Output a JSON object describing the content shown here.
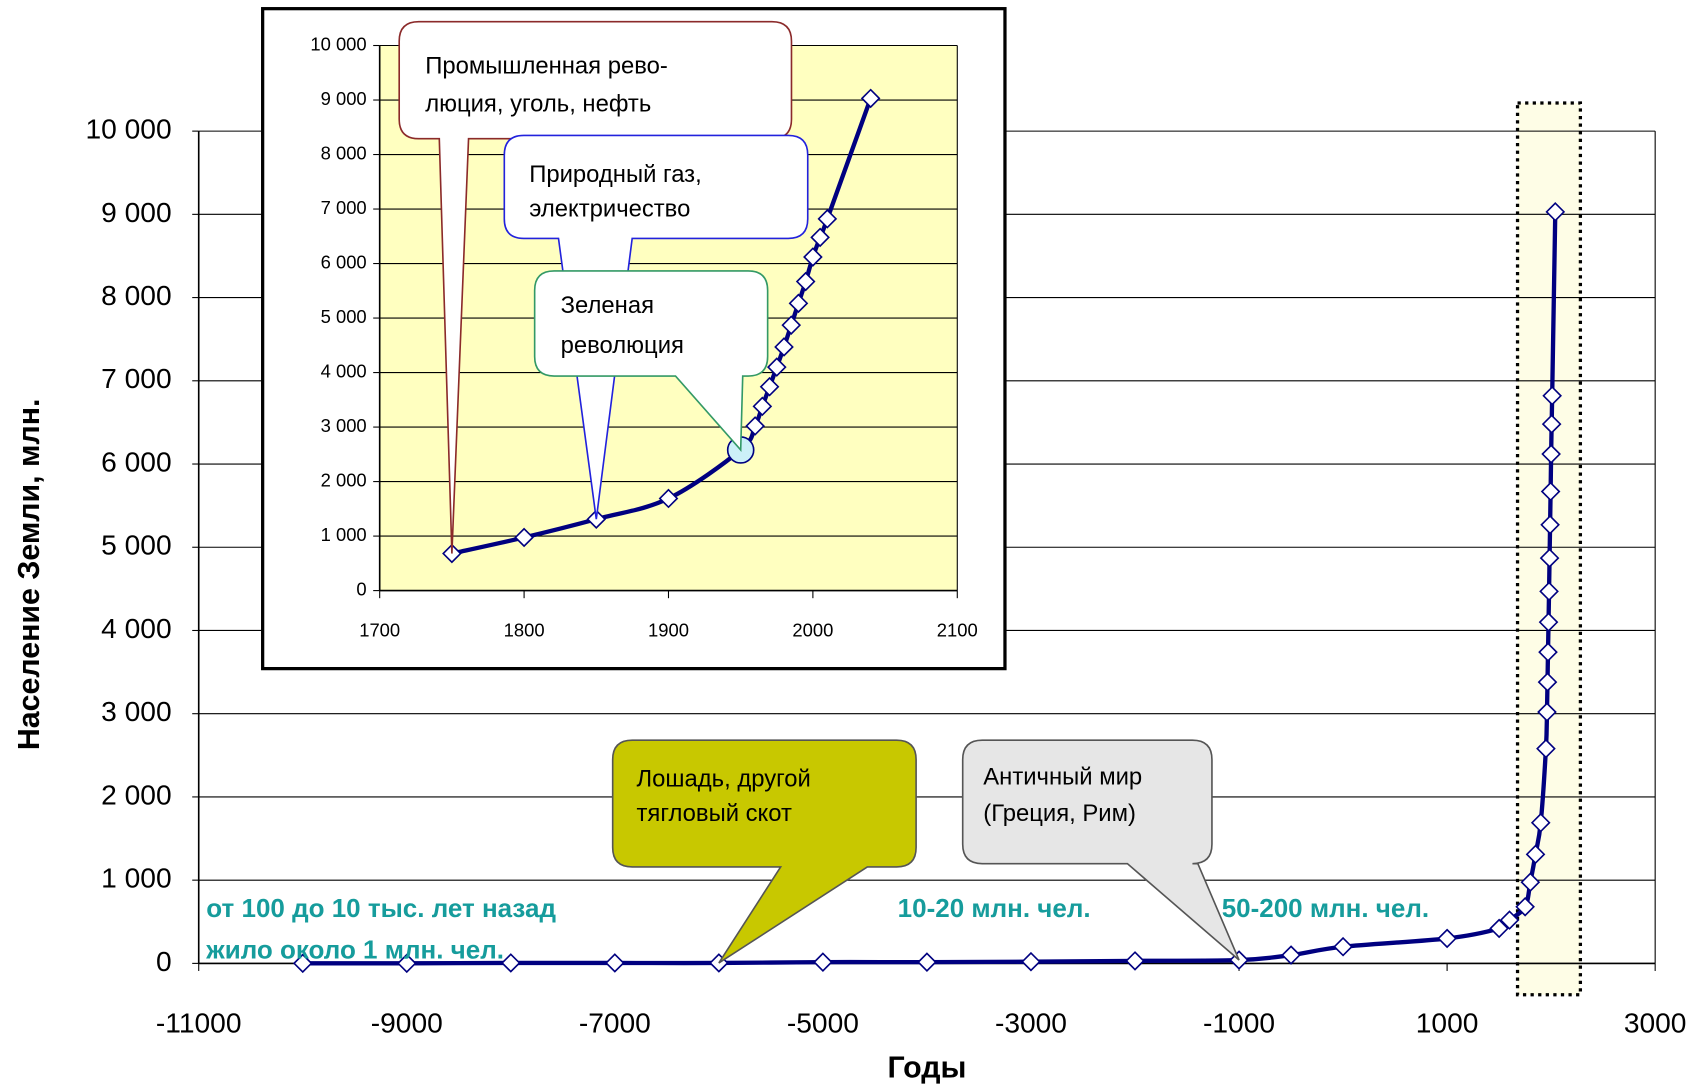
{
  "chart_data": [
    {
      "type": "line",
      "xlabel": "Годы",
      "ylabel": "Население Земли, млн.",
      "xlim": [
        -11000,
        3000
      ],
      "xticks": [
        -11000,
        -9000,
        -7000,
        -5000,
        -3000,
        -1000,
        1000,
        3000
      ],
      "ylim": [
        0,
        10000
      ],
      "yticks": [
        0,
        {
          "value": 1000,
          "label": "1 000"
        },
        {
          "value": 2000,
          "label": "2 000"
        },
        {
          "value": 3000,
          "label": "3 000"
        },
        {
          "value": 4000,
          "label": "4 000"
        },
        {
          "value": 5000,
          "label": "5 000"
        },
        {
          "value": 6000,
          "label": "6 000"
        },
        {
          "value": 7000,
          "label": "7 000"
        },
        {
          "value": 8000,
          "label": "8 000"
        },
        {
          "value": 9000,
          "label": "9 000"
        },
        {
          "value": 10000,
          "label": "10 000"
        }
      ],
      "grid": true,
      "x": [
        -10000,
        -9000,
        -8000,
        -7000,
        -6000,
        -5000,
        -4000,
        -3000,
        -2000,
        -1000,
        -500,
        0,
        1000,
        1500,
        1600,
        1750,
        1800,
        1850,
        1900,
        1950,
        1960,
        1965,
        1970,
        1975,
        1980,
        1985,
        1990,
        1995,
        2000,
        2005,
        2010,
        2040
      ],
      "series": [
        {
          "color": "#000080",
          "values": [
            1,
            1,
            5,
            5,
            5,
            15,
            15,
            20,
            30,
            40,
            100,
            200,
            300,
            420,
            520,
            680,
            975,
            1310,
            1690,
            2580,
            3020,
            3380,
            3740,
            4100,
            4470,
            4870,
            5270,
            5670,
            6120,
            6480,
            6820,
            9030
          ]
        }
      ],
      "notes": [
        {
          "lines": [
            "от 100 до 10 тыс. лет назад",
            "жило около 1 млн. чел."
          ],
          "color": "#169c9c"
        },
        {
          "lines": [
            "10-20 млн. чел."
          ],
          "color": "#169c9c"
        },
        {
          "lines": [
            "50-200 млн. чел."
          ],
          "color": "#169c9c"
        }
      ],
      "callouts": [
        {
          "lines": [
            "Лошадь, другой",
            "тягловый скот"
          ],
          "fill": "#c8c800",
          "stroke": "#555555"
        },
        {
          "lines": [
            "Античный мир",
            "(Греция, Рим)"
          ],
          "fill": "#e6e6e6",
          "stroke": "#555555"
        }
      ]
    },
    {
      "type": "line",
      "plot_background": "#ffffc0",
      "xlim": [
        1700,
        2100
      ],
      "xticks": [
        1700,
        1800,
        1900,
        2000,
        2100
      ],
      "ylim": [
        0,
        10000
      ],
      "yticks": [
        0,
        {
          "value": 1000,
          "label": "1 000"
        },
        {
          "value": 2000,
          "label": "2 000"
        },
        {
          "value": 3000,
          "label": "3 000"
        },
        {
          "value": 4000,
          "label": "4 000"
        },
        {
          "value": 5000,
          "label": "5 000"
        },
        {
          "value": 6000,
          "label": "6 000"
        },
        {
          "value": 7000,
          "label": "7 000"
        },
        {
          "value": 8000,
          "label": "8 000"
        },
        {
          "value": 9000,
          "label": "9 000"
        },
        {
          "value": 10000,
          "label": "10 000"
        }
      ],
      "grid": true,
      "x": [
        1750,
        1800,
        1850,
        1900,
        1950,
        1960,
        1965,
        1970,
        1975,
        1980,
        1985,
        1990,
        1995,
        2000,
        2005,
        2010,
        2040
      ],
      "series": [
        {
          "color": "#000080",
          "values": [
            680,
            975,
            1310,
            1690,
            2580,
            3020,
            3380,
            3740,
            4100,
            4470,
            4870,
            5270,
            5670,
            6120,
            6480,
            6820,
            9030
          ]
        }
      ],
      "highlight_index": 4,
      "callouts": [
        {
          "lines": [
            "Промышленная рево-",
            "люция, уголь, нефть"
          ],
          "fill": "#ffffff",
          "stroke": "#8b2a2a"
        },
        {
          "lines": [
            "Природный газ,",
            "электричество"
          ],
          "fill": "#ffffff",
          "stroke": "#2222dd"
        },
        {
          "lines": [
            "Зеленая",
            "революция"
          ],
          "fill": "#ffffff",
          "stroke": "#339966"
        }
      ]
    }
  ]
}
